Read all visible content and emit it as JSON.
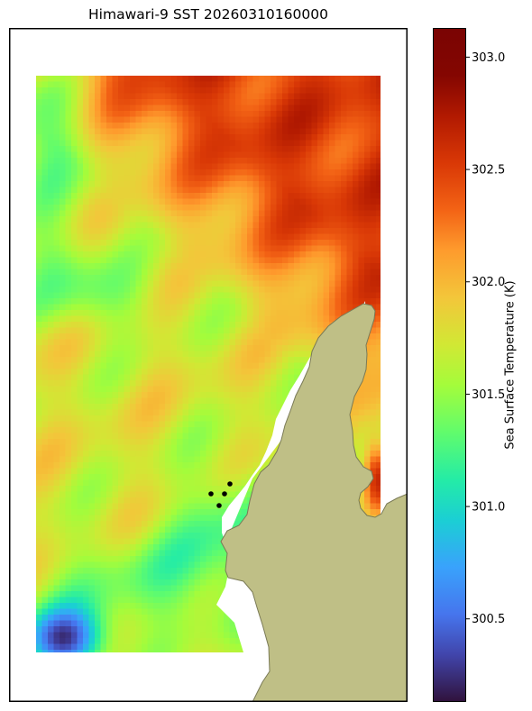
{
  "title": "Himawari-9 SST 20260310160000",
  "chart_data": {
    "type": "heatmap",
    "title": "Himawari-9 SST 20260310160000",
    "colorbar": {
      "label": "Sea Surface Temperature (K)",
      "range": [
        300.13,
        303.13
      ],
      "ticks": [
        300.5,
        301.0,
        301.5,
        302.0,
        302.5,
        303.0
      ],
      "tick_labels": [
        "300.5",
        "301.0",
        "301.5",
        "302.0",
        "302.5",
        "303.0"
      ],
      "colormap": "turbo"
    },
    "grid": false,
    "land_color": "#bfbf86",
    "coastline_color": "#7a7a56",
    "markers": {
      "count": 4,
      "color": "#000000",
      "shape": "dot"
    }
  }
}
